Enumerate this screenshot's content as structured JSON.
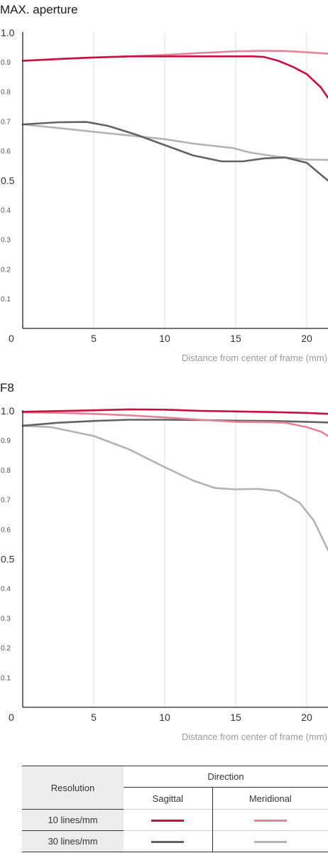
{
  "colors": {
    "sagittal_10": "#c8103f",
    "meridional_10": "#e2839a",
    "sagittal_30": "#636363",
    "meridional_30": "#b3b3b3",
    "grid": "#e6e6e6",
    "axis": "#222222"
  },
  "chart_data": [
    {
      "type": "line",
      "title": "MAX. aperture",
      "xlabel": "Distance from center of frame (mm)",
      "ylabel": "",
      "xlim": [
        0,
        21.5
      ],
      "ylim": [
        0,
        1.0
      ],
      "x_ticks": [
        0,
        5,
        10,
        15,
        20
      ],
      "x_tick_labels": [
        "0",
        "5",
        "10",
        "15",
        "20"
      ],
      "y_ticks": [
        {
          "value": 1.0,
          "label": "1.0"
        },
        {
          "value": 0.9,
          "label": "0.9"
        },
        {
          "value": 0.8,
          "label": "0.8"
        },
        {
          "value": 0.7,
          "label": "0.7"
        },
        {
          "value": 0.6,
          "label": "0.6"
        },
        {
          "value": 0.5,
          "label": "0.5"
        },
        {
          "value": 0.4,
          "label": "0.4"
        },
        {
          "value": 0.3,
          "label": "0.3"
        },
        {
          "value": 0.2,
          "label": "0.2"
        },
        {
          "value": 0.1,
          "label": "0.1"
        }
      ],
      "grid": "vertical",
      "series": [
        {
          "key": "meridional_30",
          "points": [
            [
              0,
              0.69
            ],
            [
              2,
              0.68
            ],
            [
              5,
              0.665
            ],
            [
              8,
              0.65
            ],
            [
              10,
              0.64
            ],
            [
              12,
              0.625
            ],
            [
              14.8,
              0.61
            ],
            [
              16,
              0.595
            ],
            [
              18,
              0.58
            ],
            [
              20,
              0.571
            ],
            [
              21.5,
              0.57
            ]
          ]
        },
        {
          "key": "sagittal_30",
          "points": [
            [
              0,
              0.69
            ],
            [
              2.5,
              0.697
            ],
            [
              4.5,
              0.698
            ],
            [
              6,
              0.685
            ],
            [
              8,
              0.655
            ],
            [
              10,
              0.62
            ],
            [
              12,
              0.585
            ],
            [
              14,
              0.565
            ],
            [
              15.5,
              0.565
            ],
            [
              17,
              0.575
            ],
            [
              18.5,
              0.578
            ],
            [
              20,
              0.56
            ],
            [
              21,
              0.52
            ],
            [
              21.5,
              0.5
            ]
          ]
        },
        {
          "key": "meridional_10",
          "points": [
            [
              0,
              0.905
            ],
            [
              3,
              0.912
            ],
            [
              5,
              0.916
            ],
            [
              7.5,
              0.92
            ],
            [
              10,
              0.925
            ],
            [
              12,
              0.93
            ],
            [
              15,
              0.937
            ],
            [
              17,
              0.939
            ],
            [
              18.5,
              0.938
            ],
            [
              20,
              0.934
            ],
            [
              21.5,
              0.929
            ]
          ]
        },
        {
          "key": "sagittal_10",
          "points": [
            [
              0,
              0.905
            ],
            [
              3,
              0.912
            ],
            [
              5,
              0.916
            ],
            [
              7.5,
              0.92
            ],
            [
              10,
              0.92
            ],
            [
              12.5,
              0.92
            ],
            [
              15,
              0.92
            ],
            [
              16.2,
              0.92
            ],
            [
              17,
              0.918
            ],
            [
              18,
              0.905
            ],
            [
              19,
              0.885
            ],
            [
              20,
              0.86
            ],
            [
              21,
              0.815
            ],
            [
              21.5,
              0.78
            ]
          ]
        }
      ]
    },
    {
      "type": "line",
      "title": "F8",
      "xlabel": "Distance from center of frame (mm)",
      "ylabel": "",
      "xlim": [
        0,
        21.5
      ],
      "ylim": [
        0,
        1.0
      ],
      "x_ticks": [
        0,
        5,
        10,
        15,
        20
      ],
      "x_tick_labels": [
        "0",
        "5",
        "10",
        "15",
        "20"
      ],
      "y_ticks": [
        {
          "value": 1.0,
          "label": "1.0"
        },
        {
          "value": 0.9,
          "label": "0.9"
        },
        {
          "value": 0.8,
          "label": "0.8"
        },
        {
          "value": 0.7,
          "label": "0.7"
        },
        {
          "value": 0.6,
          "label": "0.6"
        },
        {
          "value": 0.5,
          "label": "0.5"
        },
        {
          "value": 0.4,
          "label": "0.4"
        },
        {
          "value": 0.3,
          "label": "0.3"
        },
        {
          "value": 0.2,
          "label": "0.2"
        },
        {
          "value": 0.1,
          "label": "0.1"
        }
      ],
      "grid": "vertical",
      "series": [
        {
          "key": "meridional_30",
          "points": [
            [
              0,
              0.95
            ],
            [
              2,
              0.945
            ],
            [
              5,
              0.915
            ],
            [
              7.5,
              0.87
            ],
            [
              10,
              0.81
            ],
            [
              12,
              0.765
            ],
            [
              13.5,
              0.74
            ],
            [
              15,
              0.735
            ],
            [
              16.5,
              0.737
            ],
            [
              18,
              0.73
            ],
            [
              19.5,
              0.69
            ],
            [
              20.5,
              0.63
            ],
            [
              21.5,
              0.53
            ]
          ]
        },
        {
          "key": "sagittal_30",
          "points": [
            [
              0,
              0.95
            ],
            [
              2.5,
              0.96
            ],
            [
              5,
              0.966
            ],
            [
              7.5,
              0.97
            ],
            [
              10,
              0.97
            ],
            [
              12.5,
              0.969
            ],
            [
              15,
              0.967
            ],
            [
              17.5,
              0.966
            ],
            [
              20,
              0.963
            ],
            [
              21.5,
              0.961
            ]
          ]
        },
        {
          "key": "meridional_10",
          "points": [
            [
              0,
              0.995
            ],
            [
              3,
              0.993
            ],
            [
              5,
              0.99
            ],
            [
              7.5,
              0.985
            ],
            [
              10,
              0.978
            ],
            [
              12.5,
              0.97
            ],
            [
              15,
              0.963
            ],
            [
              17,
              0.962
            ],
            [
              18.5,
              0.96
            ],
            [
              20,
              0.945
            ],
            [
              21,
              0.93
            ],
            [
              21.5,
              0.915
            ]
          ]
        },
        {
          "key": "sagittal_10",
          "points": [
            [
              0,
              0.997
            ],
            [
              3,
              1.0
            ],
            [
              5,
              1.002
            ],
            [
              7.5,
              1.005
            ],
            [
              10,
              1.004
            ],
            [
              12.5,
              1.0
            ],
            [
              15,
              0.998
            ],
            [
              17.5,
              0.996
            ],
            [
              20,
              0.993
            ],
            [
              21.5,
              0.99
            ]
          ]
        }
      ]
    }
  ],
  "legend": {
    "resolution_header": "Resolution",
    "direction_header": "Direction",
    "sagittal_label": "Sagittal",
    "meridional_label": "Meridional",
    "rows": [
      {
        "label": "10 lines/mm"
      },
      {
        "label": "30 lines/mm"
      }
    ]
  }
}
